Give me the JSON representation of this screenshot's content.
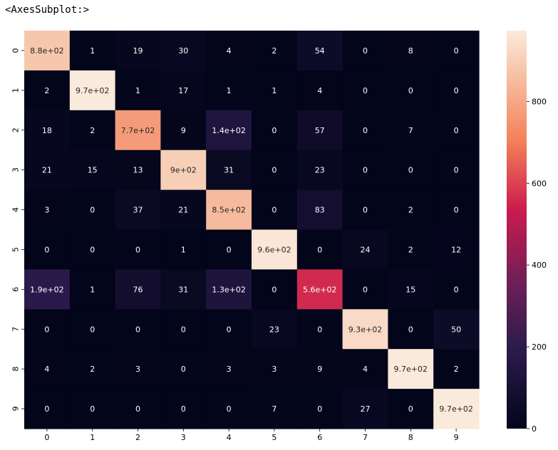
{
  "output_label": "<AxesSubplot:>",
  "chart_data": {
    "type": "heatmap",
    "x_labels": [
      "0",
      "1",
      "2",
      "3",
      "4",
      "5",
      "6",
      "7",
      "8",
      "9"
    ],
    "y_labels": [
      "0",
      "1",
      "2",
      "3",
      "4",
      "5",
      "6",
      "7",
      "8",
      "9"
    ],
    "values": [
      [
        880,
        1,
        19,
        30,
        4,
        2,
        54,
        0,
        8,
        0
      ],
      [
        2,
        970,
        1,
        17,
        1,
        1,
        4,
        0,
        0,
        0
      ],
      [
        18,
        2,
        770,
        9,
        140,
        0,
        57,
        0,
        7,
        0
      ],
      [
        21,
        15,
        13,
        900,
        31,
        0,
        23,
        0,
        0,
        0
      ],
      [
        3,
        0,
        37,
        21,
        850,
        0,
        83,
        0,
        2,
        0
      ],
      [
        0,
        0,
        0,
        1,
        0,
        960,
        0,
        24,
        2,
        12
      ],
      [
        190,
        1,
        76,
        31,
        130,
        0,
        560,
        0,
        15,
        0
      ],
      [
        0,
        0,
        0,
        0,
        0,
        23,
        0,
        930,
        0,
        50
      ],
      [
        4,
        2,
        3,
        0,
        3,
        3,
        9,
        4,
        970,
        2
      ],
      [
        0,
        0,
        0,
        0,
        0,
        7,
        0,
        27,
        0,
        970
      ]
    ],
    "annotations": [
      [
        "8.8e+02",
        "1",
        "19",
        "30",
        "4",
        "2",
        "54",
        "0",
        "8",
        "0"
      ],
      [
        "2",
        "9.7e+02",
        "1",
        "17",
        "1",
        "1",
        "4",
        "0",
        "0",
        "0"
      ],
      [
        "18",
        "2",
        "7.7e+02",
        "9",
        "1.4e+02",
        "0",
        "57",
        "0",
        "7",
        "0"
      ],
      [
        "21",
        "15",
        "13",
        "9e+02",
        "31",
        "0",
        "23",
        "0",
        "0",
        "0"
      ],
      [
        "3",
        "0",
        "37",
        "21",
        "8.5e+02",
        "0",
        "83",
        "0",
        "2",
        "0"
      ],
      [
        "0",
        "0",
        "0",
        "1",
        "0",
        "9.6e+02",
        "0",
        "24",
        "2",
        "12"
      ],
      [
        "1.9e+02",
        "1",
        "76",
        "31",
        "1.3e+02",
        "0",
        "5.6e+02",
        "0",
        "15",
        "0"
      ],
      [
        "0",
        "0",
        "0",
        "0",
        "0",
        "23",
        "0",
        "9.3e+02",
        "0",
        "50"
      ],
      [
        "4",
        "2",
        "3",
        "0",
        "3",
        "3",
        "9",
        "4",
        "9.7e+02",
        "2"
      ],
      [
        "0",
        "0",
        "0",
        "0",
        "0",
        "7",
        "0",
        "27",
        "0",
        "9.7e+02"
      ]
    ],
    "colorbar_ticks": [
      0,
      200,
      400,
      600,
      800
    ],
    "colorbar_tick_labels": [
      "0",
      "200",
      "400",
      "600",
      "800"
    ],
    "vmin": 0,
    "vmax": 973,
    "colormap": "rocket"
  }
}
